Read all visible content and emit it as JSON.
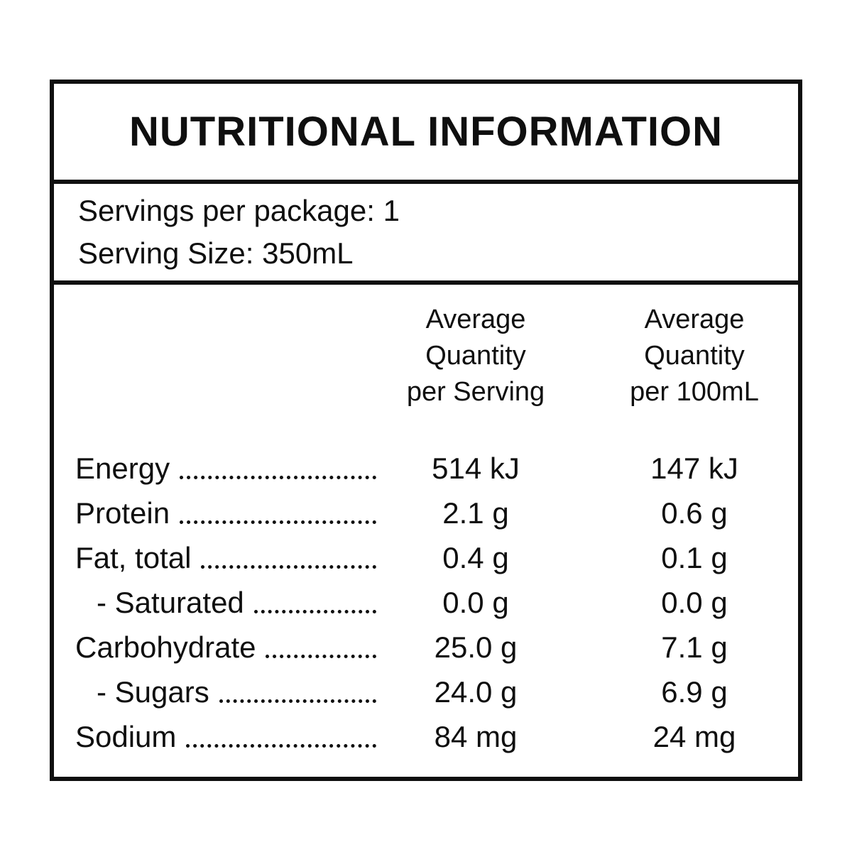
{
  "colors": {
    "ink": "#0f0f0f",
    "background": "#ffffff"
  },
  "panel": {
    "title": "NUTRITIONAL INFORMATION",
    "serving_info": {
      "servings_per_package_label": "Servings per package:",
      "servings_per_package_value": "1",
      "serving_size_label": "Serving Size:",
      "serving_size_value": "350mL"
    },
    "table": {
      "column_headers": {
        "per_serving": "Average\nQuantity\nper Serving",
        "per_100ml": "Average\nQuantity\nper 100mL"
      },
      "rows": [
        {
          "label": "Energy",
          "indent": false,
          "per_serving": "514 kJ",
          "per_100ml": "147 kJ"
        },
        {
          "label": "Protein",
          "indent": false,
          "per_serving": "2.1 g",
          "per_100ml": "0.6 g"
        },
        {
          "label": "Fat, total",
          "indent": false,
          "per_serving": "0.4 g",
          "per_100ml": "0.1 g"
        },
        {
          "label": "- Saturated",
          "indent": true,
          "per_serving": "0.0 g",
          "per_100ml": "0.0 g"
        },
        {
          "label": "Carbohydrate",
          "indent": false,
          "per_serving": "25.0 g",
          "per_100ml": "7.1 g"
        },
        {
          "label": "- Sugars",
          "indent": true,
          "per_serving": "24.0 g",
          "per_100ml": "6.9 g"
        },
        {
          "label": "Sodium",
          "indent": false,
          "per_serving": "84 mg",
          "per_100ml": "24 mg"
        }
      ]
    }
  }
}
